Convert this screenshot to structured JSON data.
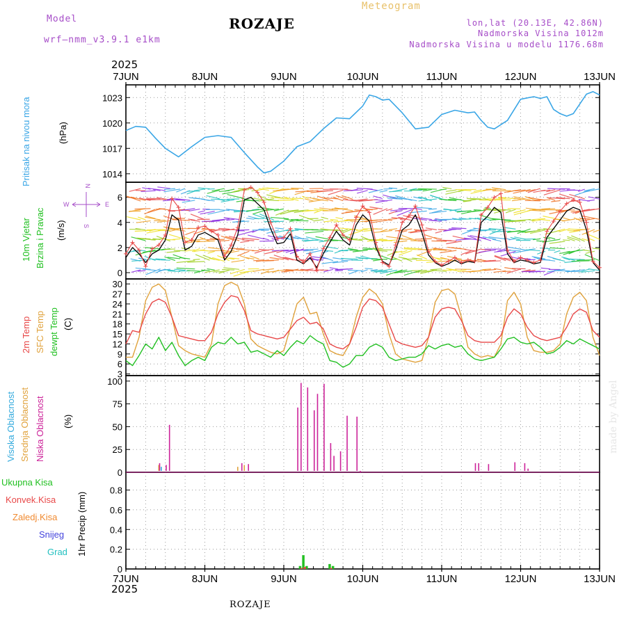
{
  "header": {
    "model_label": "Model",
    "model_name": "wrf–nmm_v3.9.1  e1km",
    "title": "ROZAJE",
    "meteogram": "Meteogram",
    "coords": "lon,lat (20.13E, 42.86N)",
    "altitude": "Nadmorska Visina 1012m",
    "model_altitude": "Nadmorska Visina u modelu 1176.68m",
    "year_top": "2025",
    "year_bottom": "2025"
  },
  "footer": {
    "location": "ROZAJE",
    "credit": "made by Angel"
  },
  "colors": {
    "pressure": "#3aa6e6",
    "wind_label": "#22c022",
    "wind_arrow_label": "#a64dc8",
    "t2m": "#e84848",
    "tsfc": "#e0a23c",
    "tdew": "#22c022",
    "cloud_high": "#33aadd",
    "cloud_mid": "#e0a23c",
    "cloud_low": "#cc2299",
    "precip_total": "#22c022",
    "precip_conv": "#e84848",
    "precip_frozen": "#f08a30",
    "snow": "#4444dd",
    "hail": "#22c0c0"
  },
  "labels": {
    "pressure": [
      "Pritisak na nivou mora",
      "(hPa)"
    ],
    "wind": [
      "10m Vjetar",
      "Brzina i Pravac",
      "(m/s)"
    ],
    "wind_dirs": {
      "n": "N",
      "s": "S",
      "w": "W",
      "e": "E"
    },
    "temp": [
      "2m Temp",
      "SFC Temp",
      "dewpt Temp",
      "(C)"
    ],
    "cloud": [
      "Visoka Oblacnost",
      "Srednja Oblacnost",
      "Niska Oblacnost",
      "(%)"
    ],
    "precip_legend": [
      "Ukupna Kisa",
      "Konvek.Kisa",
      "Zaledj.Kisa",
      "Snijeg",
      "Grad"
    ],
    "precip_unit": "1hr Precip (mm)"
  },
  "chart_data": [
    {
      "type": "line",
      "id": "pressure",
      "x_axis": {
        "labels": [
          "7JUN",
          "8JUN",
          "9JUN",
          "10JUN",
          "11JUN",
          "12JUN",
          "13JUN"
        ],
        "range_hours": [
          0,
          144
        ]
      },
      "ylim": [
        1013,
        1024.5
      ],
      "yticks": [
        1014,
        1017,
        1020,
        1023
      ],
      "grid": true,
      "series": [
        {
          "name": "Pritisak na nivou mora",
          "x": [
            0,
            3,
            6,
            9,
            12,
            16,
            20,
            24,
            28,
            32,
            36,
            40,
            42,
            44,
            48,
            52,
            56,
            60,
            64,
            68,
            72,
            74,
            76,
            78,
            80,
            84,
            88,
            92,
            96,
            100,
            104,
            106,
            108,
            110,
            112,
            116,
            120,
            124,
            126,
            128,
            130,
            132,
            134,
            136,
            140,
            142,
            144
          ],
          "y": [
            1019.1,
            1019.6,
            1019.5,
            1018.2,
            1017.0,
            1016.0,
            1017.2,
            1018.3,
            1018.5,
            1018.3,
            1016.5,
            1014.8,
            1014.1,
            1014.3,
            1015.5,
            1017.2,
            1017.8,
            1019.3,
            1020.6,
            1020.5,
            1022.0,
            1023.3,
            1023.1,
            1022.7,
            1022.8,
            1021.2,
            1019.3,
            1019.5,
            1021.0,
            1021.5,
            1021.2,
            1021.3,
            1020.3,
            1019.5,
            1019.3,
            1020.3,
            1022.8,
            1023.1,
            1022.9,
            1023.1,
            1021.6,
            1021.1,
            1020.8,
            1021.1,
            1023.4,
            1023.7,
            1023.3
          ]
        }
      ]
    },
    {
      "type": "line",
      "id": "wind",
      "ylim": [
        -0.5,
        7.2
      ],
      "yticks": [
        0,
        2,
        4,
        6
      ],
      "grid": true,
      "series": [
        {
          "name": "",
          "x": [
            0,
            2,
            4,
            6,
            8,
            10,
            12,
            14,
            16,
            18,
            20,
            22,
            24,
            26,
            28,
            30,
            32,
            34,
            36,
            38,
            40,
            42,
            44,
            46,
            48,
            50,
            52,
            54,
            56,
            58,
            60,
            62,
            64,
            66,
            68,
            70,
            72,
            74,
            76,
            78,
            80,
            82,
            84,
            86,
            88,
            90,
            92,
            94,
            96,
            98,
            100,
            102,
            104,
            106,
            108,
            110,
            112,
            114,
            116,
            118,
            120,
            122,
            124,
            126,
            128,
            130,
            132,
            134,
            136,
            138,
            140,
            142,
            144
          ],
          "y": [
            1.2,
            2.0,
            1.5,
            0.8,
            1.5,
            1.8,
            2.6,
            4.6,
            4.2,
            1.8,
            2.1,
            3.0,
            3.2,
            2.9,
            2.6,
            1.0,
            1.7,
            3.0,
            5.8,
            6.0,
            5.5,
            5.0,
            3.5,
            2.3,
            2.4,
            3.1,
            1.0,
            0.7,
            1.2,
            0.4,
            1.5,
            2.4,
            3.3,
            2.6,
            2.2,
            3.8,
            4.6,
            4.1,
            2.0,
            0.9,
            0.6,
            1.8,
            3.4,
            3.8,
            4.6,
            3.2,
            1.4,
            0.8,
            0.5,
            0.7,
            1.0,
            0.7,
            0.9,
            0.8,
            4.0,
            4.5,
            5.2,
            4.8,
            1.5,
            0.8,
            1.0,
            0.9,
            0.7,
            0.8,
            2.8,
            3.5,
            4.2,
            4.9,
            5.2,
            5.0,
            3.4,
            0.8,
            0.2
          ]
        },
        {
          "name": "",
          "x": [
            0,
            2,
            4,
            6,
            8,
            10,
            12,
            14,
            16,
            18,
            20,
            22,
            24,
            26,
            28,
            30,
            32,
            34,
            36,
            38,
            40,
            42,
            44,
            46,
            48,
            50,
            52,
            54,
            56,
            58,
            60,
            62,
            64,
            66,
            68,
            70,
            72,
            74,
            76,
            78,
            80,
            82,
            84,
            86,
            88,
            90,
            92,
            94,
            96,
            98,
            100,
            102,
            104,
            106,
            108,
            110,
            112,
            114,
            116,
            118,
            120,
            122,
            124,
            126,
            128,
            130,
            132,
            134,
            136,
            138,
            140,
            142,
            144
          ],
          "y": [
            1.5,
            2.4,
            1.8,
            0.5,
            1.9,
            2.2,
            3.0,
            5.9,
            5.2,
            2.4,
            2.6,
            3.6,
            3.7,
            3.3,
            3.0,
            1.3,
            2.2,
            3.6,
            6.6,
            6.8,
            6.4,
            5.6,
            4.0,
            2.7,
            2.8,
            3.5,
            1.3,
            0.8,
            1.5,
            0.2,
            1.9,
            2.8,
            3.8,
            3.0,
            2.6,
            4.4,
            5.3,
            4.8,
            2.4,
            0.8,
            0.5,
            2.2,
            4.0,
            4.5,
            5.3,
            3.8,
            1.7,
            0.9,
            0.6,
            0.9,
            1.2,
            0.8,
            1.0,
            0.9,
            4.6,
            5.2,
            6.0,
            6.3,
            1.8,
            0.9,
            1.2,
            1.0,
            0.8,
            1.0,
            3.3,
            4.1,
            4.9,
            5.5,
            5.8,
            5.6,
            4.0,
            0.9,
            0.4
          ]
        }
      ]
    },
    {
      "type": "line",
      "id": "temperature",
      "ylim": [
        2.5,
        31.5
      ],
      "yticks": [
        3,
        6,
        9,
        12,
        15,
        18,
        21,
        24,
        27,
        30
      ],
      "grid": true,
      "series": [
        {
          "name": "2m Temp",
          "x": [
            0,
            2,
            4,
            6,
            8,
            10,
            12,
            14,
            16,
            18,
            20,
            22,
            24,
            26,
            28,
            30,
            32,
            34,
            36,
            38,
            40,
            42,
            44,
            46,
            48,
            50,
            52,
            54,
            56,
            58,
            60,
            62,
            64,
            66,
            68,
            70,
            72,
            74,
            76,
            78,
            80,
            82,
            84,
            86,
            88,
            90,
            92,
            94,
            96,
            98,
            100,
            102,
            104,
            106,
            108,
            110,
            112,
            114,
            116,
            118,
            120,
            122,
            124,
            126,
            128,
            130,
            132,
            134,
            136,
            138,
            140,
            142,
            144
          ],
          "y": [
            12.0,
            16.0,
            15.5,
            21.0,
            24.5,
            25.5,
            24.5,
            20.0,
            14.5,
            14.0,
            13.5,
            13.0,
            13.0,
            15.5,
            21.0,
            24.5,
            26.5,
            26.0,
            22.0,
            16.0,
            15.0,
            14.5,
            14.0,
            13.5,
            14.0,
            16.5,
            19.0,
            20.0,
            18.0,
            18.5,
            16.5,
            12.0,
            11.0,
            10.5,
            12.0,
            17.0,
            23.0,
            25.5,
            25.0,
            23.0,
            18.0,
            13.0,
            12.0,
            11.5,
            11.0,
            11.5,
            14.0,
            20.0,
            22.5,
            23.0,
            22.5,
            19.0,
            14.5,
            13.0,
            12.5,
            12.5,
            12.5,
            14.5,
            20.0,
            22.5,
            21.0,
            17.0,
            14.5,
            13.5,
            13.0,
            13.5,
            14.0,
            17.0,
            21.0,
            22.5,
            21.5,
            16.0,
            14.0
          ]
        },
        {
          "name": "SFC Temp",
          "x": [
            0,
            2,
            4,
            6,
            8,
            10,
            12,
            14,
            16,
            18,
            20,
            22,
            24,
            26,
            28,
            30,
            32,
            34,
            36,
            38,
            40,
            42,
            44,
            46,
            48,
            50,
            52,
            54,
            56,
            58,
            60,
            62,
            64,
            66,
            68,
            70,
            72,
            74,
            76,
            78,
            80,
            82,
            84,
            86,
            88,
            90,
            92,
            94,
            96,
            98,
            100,
            102,
            104,
            106,
            108,
            110,
            112,
            114,
            116,
            118,
            120,
            122,
            124,
            126,
            128,
            130,
            132,
            134,
            136,
            138,
            140,
            142,
            144
          ],
          "y": [
            8.0,
            8.0,
            14.0,
            25.0,
            29.0,
            30.0,
            28.0,
            20.0,
            11.5,
            10.0,
            9.0,
            8.5,
            8.0,
            12.0,
            24.0,
            29.5,
            30.5,
            29.5,
            24.0,
            13.5,
            11.5,
            10.5,
            9.5,
            9.0,
            10.0,
            17.0,
            24.0,
            26.0,
            21.0,
            21.5,
            15.0,
            10.0,
            9.0,
            8.5,
            12.0,
            20.0,
            26.0,
            28.5,
            27.0,
            24.0,
            15.0,
            9.0,
            7.5,
            7.0,
            6.5,
            7.0,
            14.0,
            24.5,
            28.0,
            28.5,
            27.0,
            20.0,
            11.0,
            9.0,
            8.0,
            8.5,
            8.0,
            12.0,
            25.0,
            27.5,
            24.0,
            14.0,
            10.0,
            9.5,
            9.5,
            10.0,
            12.0,
            21.0,
            26.0,
            27.5,
            25.0,
            14.0,
            8.5
          ]
        },
        {
          "name": "dewpt Temp",
          "x": [
            0,
            2,
            4,
            6,
            8,
            10,
            12,
            14,
            16,
            18,
            20,
            22,
            24,
            26,
            28,
            30,
            32,
            34,
            36,
            38,
            40,
            42,
            44,
            46,
            48,
            50,
            52,
            54,
            56,
            58,
            60,
            62,
            64,
            66,
            68,
            70,
            72,
            74,
            76,
            78,
            80,
            82,
            84,
            86,
            88,
            90,
            92,
            94,
            96,
            98,
            100,
            102,
            104,
            106,
            108,
            110,
            112,
            114,
            116,
            118,
            120,
            122,
            124,
            126,
            128,
            130,
            132,
            134,
            136,
            138,
            140,
            142,
            144
          ],
          "y": [
            7.0,
            5.5,
            8.5,
            12.0,
            10.5,
            14.0,
            10.0,
            12.5,
            8.5,
            5.5,
            7.0,
            8.0,
            7.0,
            11.0,
            12.5,
            12.0,
            14.0,
            12.0,
            12.5,
            9.5,
            10.0,
            9.0,
            8.0,
            10.0,
            8.5,
            11.0,
            13.0,
            12.0,
            14.5,
            13.0,
            12.0,
            7.0,
            6.5,
            5.0,
            6.0,
            8.5,
            8.5,
            11.0,
            12.0,
            11.0,
            8.0,
            7.0,
            7.5,
            8.0,
            8.0,
            9.0,
            11.5,
            10.5,
            11.5,
            12.0,
            11.0,
            11.5,
            9.0,
            7.5,
            7.0,
            7.5,
            8.0,
            10.5,
            13.5,
            14.0,
            12.5,
            12.0,
            12.5,
            11.0,
            9.0,
            9.5,
            11.0,
            13.0,
            12.0,
            13.5,
            12.5,
            11.5,
            10.5
          ]
        }
      ]
    },
    {
      "type": "bar",
      "id": "cloud",
      "ylim": [
        0,
        106
      ],
      "yticks": [
        0,
        25,
        50,
        75,
        100
      ],
      "grid": true,
      "series": [
        {
          "name": "Visoka Oblacnost",
          "x": [
            11
          ],
          "values": [
            6
          ]
        },
        {
          "name": "Srednja Oblacnost",
          "x": [
            10,
            34,
            36
          ],
          "values": [
            8,
            6,
            8
          ]
        },
        {
          "name": "Niska Oblacnost",
          "x": [
            10,
            12,
            13,
            35,
            37,
            52,
            53,
            55,
            57,
            58,
            60,
            62,
            63,
            65,
            67,
            70,
            71,
            106,
            107,
            110,
            118,
            121,
            122
          ],
          "values": [
            10,
            8,
            52,
            10,
            9,
            71,
            98,
            93,
            68,
            86,
            97,
            32,
            18,
            23,
            62,
            61,
            0,
            10,
            10,
            9,
            11,
            10,
            4
          ]
        }
      ]
    },
    {
      "type": "bar",
      "id": "precipitation",
      "ylim": [
        0,
        0.98
      ],
      "yticks": [
        0,
        0.2,
        0.4,
        0.6,
        0.8
      ],
      "grid": true,
      "series": [
        {
          "name": "Ukupna Kisa",
          "x": [
            53,
            54,
            55,
            62,
            63
          ],
          "values": [
            0.03,
            0.14,
            0.03,
            0.05,
            0.03
          ]
        },
        {
          "name": "Konvek.Kisa",
          "x": [
            53,
            54,
            62
          ],
          "values": [
            0.01,
            0.02,
            0.01
          ]
        }
      ]
    }
  ]
}
